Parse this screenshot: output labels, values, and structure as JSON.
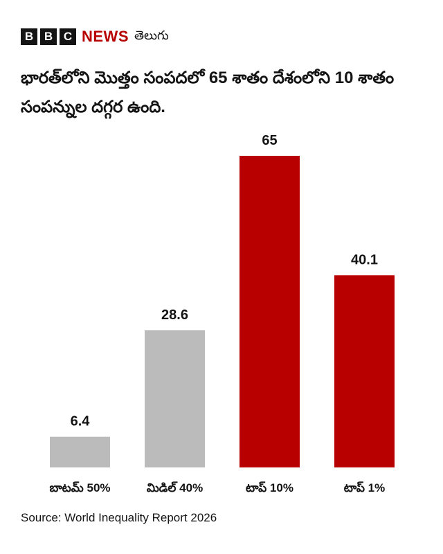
{
  "header": {
    "brand_letters": [
      "B",
      "B",
      "C"
    ],
    "news": "NEWS",
    "language": "తెలుగు"
  },
  "chart_data": {
    "type": "bar",
    "title": "భారత్‌లోని మొత్తం సంపదలో 65 శాతం దేశంలోని 10 శాతం సంపన్నుల దగ్గర ఉంది.",
    "categories": [
      "బాటమ్ 50%",
      "మిడిల్ 40%",
      "టాప్ 10%",
      "టాప్ 1%"
    ],
    "values": [
      6.4,
      28.6,
      65,
      40.1
    ],
    "colors": [
      "#bbbbbb",
      "#bbbbbb",
      "#b80000",
      "#b80000"
    ],
    "source": "Source: World Inequality Report 2026"
  }
}
